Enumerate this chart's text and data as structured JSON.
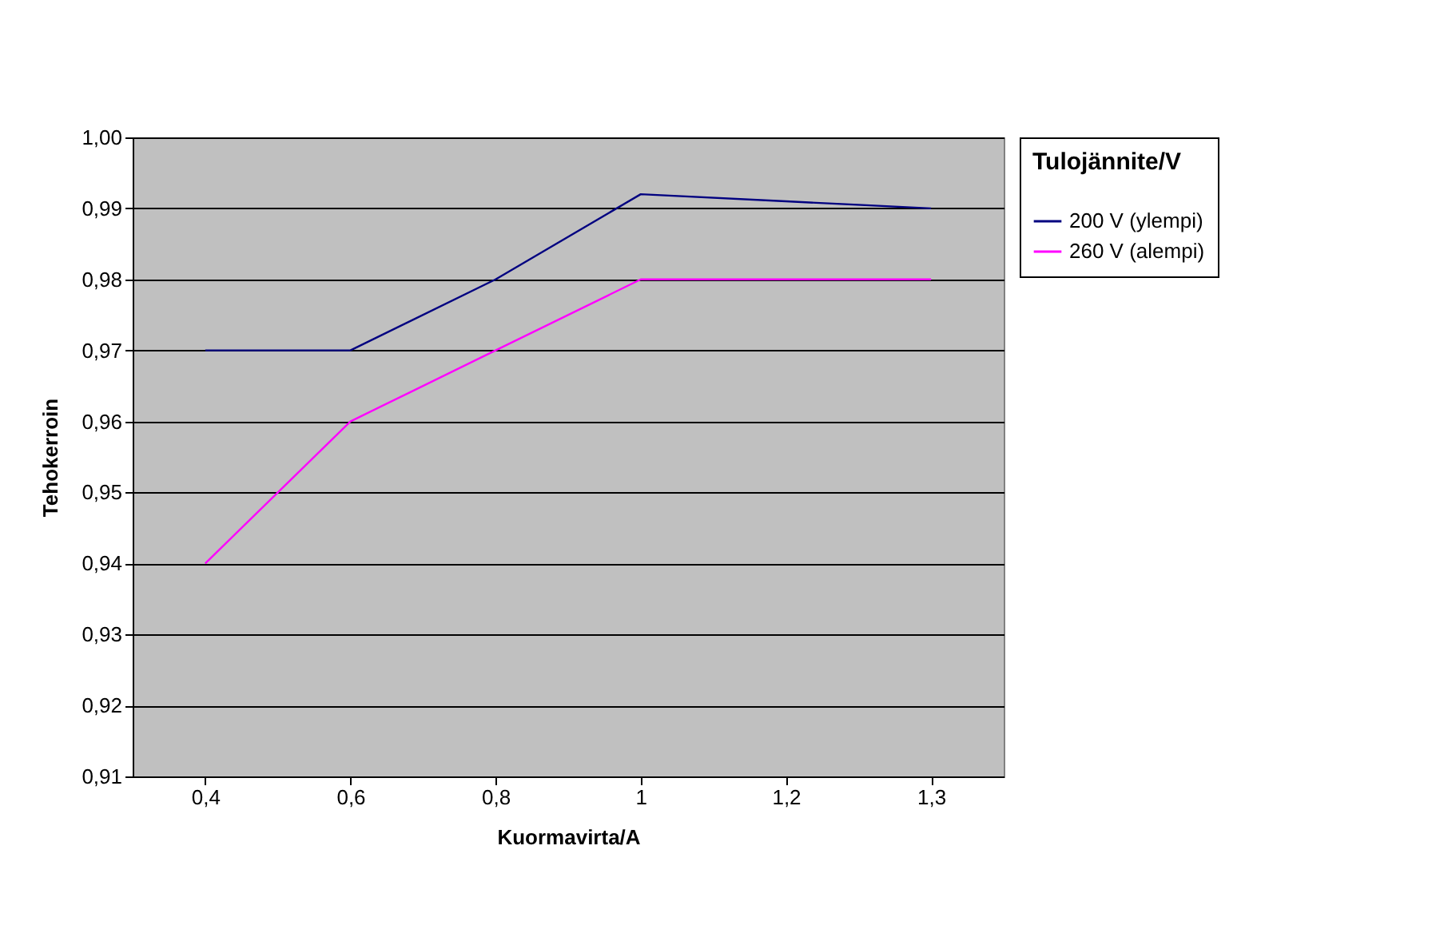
{
  "chart_data": {
    "type": "line",
    "xlabel": "Kuormavirta/A",
    "ylabel": "Tehokerroin",
    "legend_title": "Tulojännite/V",
    "categories": [
      "0,4",
      "0,6",
      "0,8",
      "1",
      "1,2",
      "1,3"
    ],
    "series": [
      {
        "name": "200 V (ylempi)",
        "color": "#000080",
        "values": [
          0.97,
          0.97,
          0.98,
          0.992,
          0.991,
          0.99
        ]
      },
      {
        "name": "260 V (alempi)",
        "color": "#ff00ff",
        "values": [
          0.94,
          0.96,
          0.97,
          0.98,
          0.98,
          0.98
        ]
      }
    ],
    "ylim": [
      0.91,
      1.0
    ],
    "yticks": [
      {
        "value": 0.91,
        "label": "0,91"
      },
      {
        "value": 0.92,
        "label": "0,92"
      },
      {
        "value": 0.93,
        "label": "0,93"
      },
      {
        "value": 0.94,
        "label": "0,94"
      },
      {
        "value": 0.95,
        "label": "0,95"
      },
      {
        "value": 0.96,
        "label": "0,96"
      },
      {
        "value": 0.97,
        "label": "0,97"
      },
      {
        "value": 0.98,
        "label": "0,98"
      },
      {
        "value": 0.99,
        "label": "0,99"
      },
      {
        "value": 1.0,
        "label": "1,00"
      }
    ],
    "grid": "y",
    "legend": "right",
    "marker": "none",
    "line_style": "solid"
  }
}
